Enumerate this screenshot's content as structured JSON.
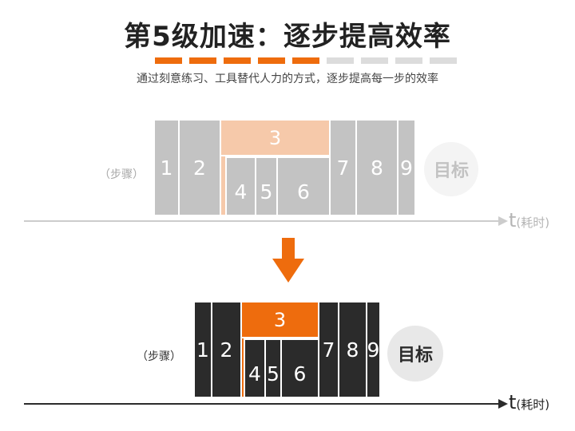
{
  "header": {
    "title": "第5级加速：逐步提高效率",
    "subtitle": "通过刻意练习、工具替代人力的方式，逐步提高每一步的效率",
    "progress": {
      "filled": 5,
      "total": 9
    }
  },
  "colors": {
    "accent": "#ee6c0d",
    "accent_light": "#f6c9aa",
    "muted_grey": "#c3c3c3",
    "dark": "#2b2b2b",
    "progress_empty": "#dcdcdc"
  },
  "before": {
    "steps_label": "（步骤）",
    "blocks": [
      "1",
      "2",
      "3",
      "4",
      "5",
      "6",
      "7",
      "8",
      "9"
    ],
    "goal": "目标",
    "axis_t": "t",
    "axis_unit": "(耗时)"
  },
  "after": {
    "steps_label": "（步骤）",
    "blocks": [
      "1",
      "2",
      "3",
      "4",
      "5",
      "6",
      "7",
      "8",
      "9"
    ],
    "goal": "目标",
    "axis_t": "t",
    "axis_unit": "(耗时)"
  },
  "transition": {
    "icon": "arrow-down-icon"
  }
}
